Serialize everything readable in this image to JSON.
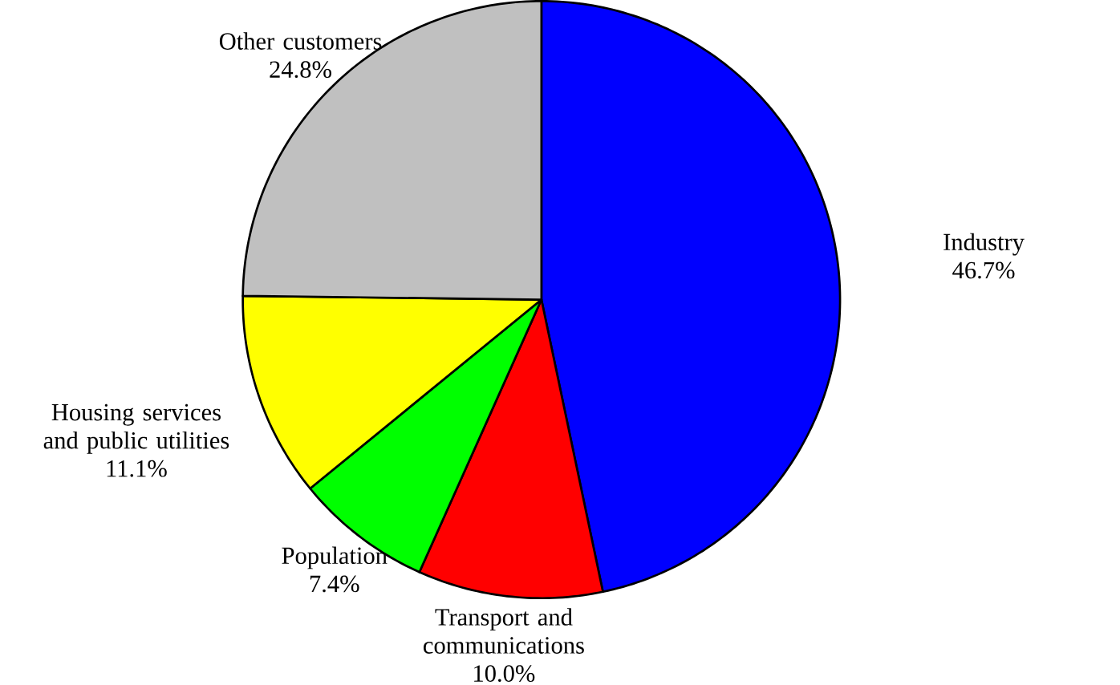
{
  "chart_data": {
    "type": "pie",
    "categories": [
      "Industry",
      "Transport and communications",
      "Population",
      "Housing services and public utilities",
      "Other customers"
    ],
    "values": [
      46.7,
      10.0,
      7.4,
      11.1,
      24.8
    ],
    "value_labels": [
      "46.7%",
      "10.0%",
      "7.4%",
      "11.1%",
      "24.8%"
    ],
    "colors": [
      "#0000ff",
      "#ff0000",
      "#00ff00",
      "#ffff00",
      "#c0c0c0"
    ]
  }
}
